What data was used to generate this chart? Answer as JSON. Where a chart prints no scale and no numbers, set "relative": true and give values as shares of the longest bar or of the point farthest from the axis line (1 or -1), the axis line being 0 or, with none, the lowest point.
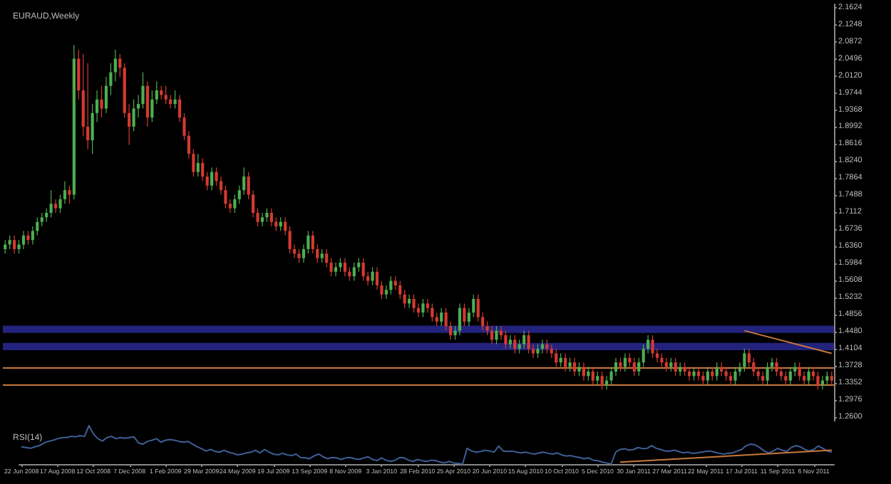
{
  "chart_data": [
    {
      "type": "candlestick",
      "title": "EURAUD,Weekly",
      "categories": [
        null,
        null,
        null,
        null,
        null,
        null,
        null,
        null,
        null,
        null,
        null,
        null,
        null,
        null,
        null,
        null,
        null,
        null,
        null,
        null,
        null,
        null,
        null,
        null,
        null,
        null,
        null,
        null,
        null,
        null,
        null,
        null,
        null,
        null,
        null,
        null,
        null,
        null,
        null,
        null,
        null,
        null,
        null,
        null,
        null,
        null,
        null,
        null,
        null,
        null,
        null,
        null,
        null,
        null,
        null,
        null,
        null,
        null,
        null,
        null,
        null,
        null,
        null,
        null,
        null,
        null,
        null,
        null,
        null,
        null,
        null,
        null,
        null,
        null,
        null,
        null,
        null,
        null,
        null,
        null,
        null,
        null,
        null,
        null,
        null,
        null,
        null,
        null,
        null,
        null,
        null,
        null,
        null,
        null,
        null,
        null,
        null,
        null,
        null,
        null,
        null,
        null,
        null,
        null,
        null,
        null,
        null,
        null,
        null,
        null,
        null,
        null,
        null,
        null,
        null,
        null,
        null,
        null,
        null,
        null,
        null,
        null,
        null,
        null,
        null,
        null,
        null,
        null,
        null,
        null,
        null,
        null,
        null,
        null,
        null,
        null,
        null,
        null,
        null,
        null,
        null,
        null,
        null,
        null,
        null,
        null,
        null,
        null,
        null,
        null,
        null,
        null,
        null,
        null,
        null,
        null,
        null,
        null,
        null,
        null,
        null,
        null,
        null,
        null,
        null,
        null,
        null,
        null,
        null,
        null,
        null,
        null,
        null,
        null,
        null,
        null,
        null,
        null,
        null,
        null,
        null
      ],
      "ohlc": [
        [
          1.63,
          1.65,
          1.62,
          1.64
        ],
        [
          1.64,
          1.66,
          1.63,
          1.65
        ],
        [
          1.65,
          1.66,
          1.62,
          1.63
        ],
        [
          1.63,
          1.65,
          1.62,
          1.64
        ],
        [
          1.64,
          1.67,
          1.63,
          1.66
        ],
        [
          1.66,
          1.67,
          1.64,
          1.65
        ],
        [
          1.65,
          1.68,
          1.64,
          1.67
        ],
        [
          1.67,
          1.7,
          1.66,
          1.69
        ],
        [
          1.69,
          1.71,
          1.68,
          1.7
        ],
        [
          1.7,
          1.72,
          1.69,
          1.71
        ],
        [
          1.71,
          1.76,
          1.7,
          1.73
        ],
        [
          1.73,
          1.74,
          1.71,
          1.72
        ],
        [
          1.72,
          1.75,
          1.71,
          1.74
        ],
        [
          1.74,
          1.78,
          1.73,
          1.76
        ],
        [
          1.76,
          1.77,
          1.73,
          1.75
        ],
        [
          1.75,
          2.08,
          1.74,
          2.05
        ],
        [
          2.05,
          2.07,
          1.96,
          1.98
        ],
        [
          1.98,
          2.06,
          1.88,
          1.9
        ],
        [
          1.9,
          2.04,
          1.85,
          1.87
        ],
        [
          1.87,
          1.95,
          1.84,
          1.93
        ],
        [
          1.93,
          1.98,
          1.91,
          1.96
        ],
        [
          1.96,
          1.99,
          1.92,
          1.94
        ],
        [
          1.94,
          2.01,
          1.93,
          1.99
        ],
        [
          1.99,
          2.04,
          1.97,
          2.02
        ],
        [
          2.02,
          2.07,
          2.0,
          2.05
        ],
        [
          2.05,
          2.06,
          2.01,
          2.03
        ],
        [
          2.03,
          2.04,
          1.92,
          1.93
        ],
        [
          1.93,
          1.95,
          1.86,
          1.9
        ],
        [
          1.9,
          1.96,
          1.89,
          1.94
        ],
        [
          1.94,
          1.97,
          1.92,
          1.95
        ],
        [
          1.95,
          2.02,
          1.94,
          1.99
        ],
        [
          1.99,
          2.0,
          1.9,
          1.92
        ],
        [
          1.92,
          1.98,
          1.91,
          1.96
        ],
        [
          1.96,
          2.0,
          1.95,
          1.98
        ],
        [
          1.98,
          1.99,
          1.96,
          1.97
        ],
        [
          1.97,
          1.99,
          1.95,
          1.96
        ],
        [
          1.96,
          1.97,
          1.94,
          1.95
        ],
        [
          1.95,
          1.98,
          1.94,
          1.96
        ],
        [
          1.96,
          1.97,
          1.91,
          1.92
        ],
        [
          1.92,
          1.93,
          1.87,
          1.88
        ],
        [
          1.88,
          1.89,
          1.83,
          1.84
        ],
        [
          1.84,
          1.85,
          1.79,
          1.8
        ],
        [
          1.8,
          1.84,
          1.79,
          1.82
        ],
        [
          1.82,
          1.83,
          1.78,
          1.79
        ],
        [
          1.79,
          1.8,
          1.76,
          1.77
        ],
        [
          1.77,
          1.81,
          1.76,
          1.8
        ],
        [
          1.8,
          1.81,
          1.77,
          1.78
        ],
        [
          1.78,
          1.79,
          1.75,
          1.76
        ],
        [
          1.76,
          1.77,
          1.72,
          1.73
        ],
        [
          1.73,
          1.74,
          1.71,
          1.72
        ],
        [
          1.72,
          1.75,
          1.71,
          1.74
        ],
        [
          1.74,
          1.77,
          1.73,
          1.76
        ],
        [
          1.76,
          1.81,
          1.75,
          1.79
        ],
        [
          1.79,
          1.8,
          1.74,
          1.75
        ],
        [
          1.75,
          1.76,
          1.7,
          1.71
        ],
        [
          1.71,
          1.72,
          1.68,
          1.69
        ],
        [
          1.69,
          1.71,
          1.68,
          1.7
        ],
        [
          1.7,
          1.72,
          1.69,
          1.71
        ],
        [
          1.71,
          1.72,
          1.68,
          1.69
        ],
        [
          1.69,
          1.7,
          1.67,
          1.68
        ],
        [
          1.68,
          1.7,
          1.67,
          1.69
        ],
        [
          1.69,
          1.7,
          1.66,
          1.67
        ],
        [
          1.67,
          1.68,
          1.62,
          1.63
        ],
        [
          1.63,
          1.64,
          1.61,
          1.62
        ],
        [
          1.62,
          1.63,
          1.6,
          1.61
        ],
        [
          1.61,
          1.64,
          1.6,
          1.63
        ],
        [
          1.63,
          1.67,
          1.62,
          1.66
        ],
        [
          1.66,
          1.67,
          1.62,
          1.63
        ],
        [
          1.63,
          1.64,
          1.6,
          1.61
        ],
        [
          1.61,
          1.63,
          1.6,
          1.62
        ],
        [
          1.62,
          1.63,
          1.59,
          1.6
        ],
        [
          1.6,
          1.61,
          1.57,
          1.58
        ],
        [
          1.58,
          1.6,
          1.57,
          1.59
        ],
        [
          1.59,
          1.61,
          1.58,
          1.6
        ],
        [
          1.6,
          1.61,
          1.57,
          1.58
        ],
        [
          1.58,
          1.59,
          1.56,
          1.57
        ],
        [
          1.57,
          1.6,
          1.56,
          1.59
        ],
        [
          1.59,
          1.61,
          1.58,
          1.6
        ],
        [
          1.6,
          1.61,
          1.56,
          1.57
        ],
        [
          1.57,
          1.58,
          1.55,
          1.56
        ],
        [
          1.56,
          1.59,
          1.55,
          1.58
        ],
        [
          1.58,
          1.59,
          1.54,
          1.55
        ],
        [
          1.55,
          1.56,
          1.52,
          1.53
        ],
        [
          1.53,
          1.55,
          1.52,
          1.54
        ],
        [
          1.54,
          1.57,
          1.53,
          1.56
        ],
        [
          1.56,
          1.57,
          1.54,
          1.55
        ],
        [
          1.55,
          1.56,
          1.52,
          1.53
        ],
        [
          1.53,
          1.54,
          1.5,
          1.51
        ],
        [
          1.51,
          1.53,
          1.5,
          1.52
        ],
        [
          1.52,
          1.53,
          1.49,
          1.5
        ],
        [
          1.5,
          1.51,
          1.48,
          1.49
        ],
        [
          1.49,
          1.52,
          1.48,
          1.51
        ],
        [
          1.51,
          1.52,
          1.49,
          1.5
        ],
        [
          1.5,
          1.51,
          1.47,
          1.48
        ],
        [
          1.48,
          1.49,
          1.46,
          1.47
        ],
        [
          1.47,
          1.5,
          1.46,
          1.49
        ],
        [
          1.49,
          1.5,
          1.45,
          1.46
        ],
        [
          1.46,
          1.47,
          1.43,
          1.44
        ],
        [
          1.44,
          1.46,
          1.43,
          1.45
        ],
        [
          1.45,
          1.51,
          1.44,
          1.5
        ],
        [
          1.5,
          1.51,
          1.46,
          1.47
        ],
        [
          1.47,
          1.5,
          1.46,
          1.49
        ],
        [
          1.49,
          1.53,
          1.48,
          1.52
        ],
        [
          1.52,
          1.53,
          1.47,
          1.48
        ],
        [
          1.48,
          1.49,
          1.45,
          1.46
        ],
        [
          1.46,
          1.47,
          1.44,
          1.45
        ],
        [
          1.45,
          1.46,
          1.42,
          1.43
        ],
        [
          1.43,
          1.46,
          1.42,
          1.45
        ],
        [
          1.45,
          1.46,
          1.43,
          1.44
        ],
        [
          1.44,
          1.45,
          1.41,
          1.42
        ],
        [
          1.42,
          1.44,
          1.41,
          1.43
        ],
        [
          1.43,
          1.44,
          1.4,
          1.41
        ],
        [
          1.41,
          1.43,
          1.4,
          1.42
        ],
        [
          1.42,
          1.45,
          1.41,
          1.44
        ],
        [
          1.44,
          1.45,
          1.4,
          1.41
        ],
        [
          1.41,
          1.42,
          1.39,
          1.4
        ],
        [
          1.4,
          1.42,
          1.39,
          1.41
        ],
        [
          1.41,
          1.43,
          1.4,
          1.42
        ],
        [
          1.42,
          1.43,
          1.4,
          1.41
        ],
        [
          1.41,
          1.42,
          1.39,
          1.4
        ],
        [
          1.4,
          1.41,
          1.37,
          1.38
        ],
        [
          1.38,
          1.4,
          1.37,
          1.39
        ],
        [
          1.39,
          1.4,
          1.36,
          1.37
        ],
        [
          1.37,
          1.39,
          1.36,
          1.38
        ],
        [
          1.38,
          1.39,
          1.35,
          1.36
        ],
        [
          1.36,
          1.38,
          1.35,
          1.37
        ],
        [
          1.37,
          1.38,
          1.34,
          1.35
        ],
        [
          1.35,
          1.37,
          1.34,
          1.36
        ],
        [
          1.36,
          1.37,
          1.33,
          1.34
        ],
        [
          1.34,
          1.36,
          1.33,
          1.35
        ],
        [
          1.35,
          1.36,
          1.32,
          1.33
        ],
        [
          1.33,
          1.35,
          1.32,
          1.34
        ],
        [
          1.34,
          1.37,
          1.33,
          1.36
        ],
        [
          1.36,
          1.39,
          1.35,
          1.38
        ],
        [
          1.38,
          1.39,
          1.36,
          1.37
        ],
        [
          1.37,
          1.4,
          1.36,
          1.39
        ],
        [
          1.39,
          1.4,
          1.37,
          1.38
        ],
        [
          1.38,
          1.39,
          1.35,
          1.36
        ],
        [
          1.36,
          1.39,
          1.35,
          1.38
        ],
        [
          1.38,
          1.42,
          1.37,
          1.41
        ],
        [
          1.41,
          1.44,
          1.4,
          1.43
        ],
        [
          1.43,
          1.44,
          1.39,
          1.4
        ],
        [
          1.4,
          1.41,
          1.38,
          1.39
        ],
        [
          1.39,
          1.4,
          1.37,
          1.38
        ],
        [
          1.38,
          1.39,
          1.36,
          1.37
        ],
        [
          1.37,
          1.39,
          1.36,
          1.38
        ],
        [
          1.38,
          1.39,
          1.35,
          1.36
        ],
        [
          1.36,
          1.38,
          1.35,
          1.37
        ],
        [
          1.37,
          1.38,
          1.35,
          1.36
        ],
        [
          1.36,
          1.37,
          1.34,
          1.35
        ],
        [
          1.35,
          1.37,
          1.34,
          1.36
        ],
        [
          1.36,
          1.37,
          1.34,
          1.35
        ],
        [
          1.35,
          1.36,
          1.33,
          1.34
        ],
        [
          1.34,
          1.37,
          1.33,
          1.36
        ],
        [
          1.36,
          1.37,
          1.34,
          1.35
        ],
        [
          1.35,
          1.38,
          1.34,
          1.37
        ],
        [
          1.37,
          1.38,
          1.35,
          1.36
        ],
        [
          1.36,
          1.37,
          1.34,
          1.35
        ],
        [
          1.35,
          1.36,
          1.33,
          1.34
        ],
        [
          1.34,
          1.37,
          1.33,
          1.36
        ],
        [
          1.36,
          1.38,
          1.35,
          1.37
        ],
        [
          1.37,
          1.41,
          1.36,
          1.4
        ],
        [
          1.4,
          1.41,
          1.37,
          1.38
        ],
        [
          1.38,
          1.39,
          1.35,
          1.36
        ],
        [
          1.36,
          1.37,
          1.34,
          1.35
        ],
        [
          1.35,
          1.36,
          1.33,
          1.34
        ],
        [
          1.34,
          1.38,
          1.33,
          1.37
        ],
        [
          1.37,
          1.39,
          1.36,
          1.38
        ],
        [
          1.38,
          1.39,
          1.35,
          1.36
        ],
        [
          1.36,
          1.37,
          1.34,
          1.35
        ],
        [
          1.35,
          1.36,
          1.33,
          1.34
        ],
        [
          1.34,
          1.37,
          1.33,
          1.36
        ],
        [
          1.36,
          1.38,
          1.35,
          1.37
        ],
        [
          1.37,
          1.38,
          1.34,
          1.35
        ],
        [
          1.35,
          1.36,
          1.33,
          1.34
        ],
        [
          1.34,
          1.37,
          1.33,
          1.36
        ],
        [
          1.36,
          1.37,
          1.34,
          1.35
        ],
        [
          1.35,
          1.36,
          1.32,
          1.33
        ],
        [
          1.33,
          1.35,
          1.32,
          1.34
        ],
        [
          1.34,
          1.36,
          1.33,
          1.35
        ],
        [
          1.35,
          1.36,
          1.33,
          1.34
        ]
      ],
      "colors": [
        "#4caf50",
        "#4caf50",
        "#d43a30",
        "#4caf50",
        "#4caf50",
        "#d43a30",
        "#4caf50",
        "#4caf50",
        "#4caf50",
        "#4caf50",
        "#4caf50",
        "#d43a30",
        "#4caf50",
        "#4caf50",
        "#d43a30",
        "#4caf50",
        "#d43a30",
        "#d43a30",
        "#d43a30",
        "#4caf50",
        "#4caf50",
        "#d43a30",
        "#4caf50",
        "#4caf50",
        "#4caf50",
        "#d43a30",
        "#d43a30",
        "#d43a30",
        "#4caf50",
        "#4caf50",
        "#4caf50",
        "#d43a30",
        "#4caf50",
        "#4caf50",
        "#d43a30",
        "#d43a30",
        "#d43a30",
        "#4caf50",
        "#d43a30",
        "#d43a30",
        "#d43a30",
        "#d43a30",
        "#4caf50",
        "#d43a30",
        "#d43a30",
        "#4caf50",
        "#d43a30",
        "#d43a30",
        "#d43a30",
        "#d43a30",
        "#4caf50",
        "#4caf50",
        "#4caf50",
        "#d43a30",
        "#d43a30",
        "#d43a30",
        "#4caf50",
        "#4caf50",
        "#d43a30",
        "#d43a30",
        "#4caf50",
        "#d43a30",
        "#d43a30",
        "#d43a30",
        "#d43a30",
        "#4caf50",
        "#4caf50",
        "#d43a30",
        "#d43a30",
        "#4caf50",
        "#d43a30",
        "#d43a30",
        "#4caf50",
        "#4caf50",
        "#d43a30",
        "#d43a30",
        "#4caf50",
        "#4caf50",
        "#d43a30",
        "#d43a30",
        "#4caf50",
        "#d43a30",
        "#d43a30",
        "#4caf50",
        "#4caf50",
        "#d43a30",
        "#d43a30",
        "#d43a30",
        "#4caf50",
        "#d43a30",
        "#d43a30",
        "#4caf50",
        "#d43a30",
        "#d43a30",
        "#d43a30",
        "#4caf50",
        "#d43a30",
        "#d43a30",
        "#4caf50",
        "#4caf50",
        "#d43a30",
        "#4caf50",
        "#4caf50",
        "#d43a30",
        "#d43a30",
        "#d43a30",
        "#d43a30",
        "#4caf50",
        "#d43a30",
        "#d43a30",
        "#4caf50",
        "#d43a30",
        "#4caf50",
        "#4caf50",
        "#d43a30",
        "#d43a30",
        "#4caf50",
        "#4caf50",
        "#d43a30",
        "#d43a30",
        "#d43a30",
        "#4caf50",
        "#d43a30",
        "#4caf50",
        "#d43a30",
        "#4caf50",
        "#d43a30",
        "#4caf50",
        "#d43a30",
        "#4caf50",
        "#d43a30",
        "#4caf50",
        "#4caf50",
        "#4caf50",
        "#d43a30",
        "#4caf50",
        "#d43a30",
        "#d43a30",
        "#4caf50",
        "#4caf50",
        "#4caf50",
        "#d43a30",
        "#d43a30",
        "#d43a30",
        "#d43a30",
        "#4caf50",
        "#d43a30",
        "#4caf50",
        "#d43a30",
        "#d43a30",
        "#4caf50",
        "#d43a30",
        "#d43a30",
        "#4caf50",
        "#d43a30",
        "#4caf50",
        "#d43a30",
        "#d43a30",
        "#d43a30",
        "#4caf50",
        "#4caf50",
        "#4caf50",
        "#d43a30",
        "#d43a30",
        "#d43a30",
        "#d43a30",
        "#4caf50",
        "#4caf50",
        "#d43a30",
        "#d43a30",
        "#d43a30",
        "#4caf50",
        "#4caf50",
        "#d43a30",
        "#d43a30",
        "#4caf50",
        "#d43a30",
        "#d43a30",
        "#4caf50",
        "#4caf50",
        "#d43a30"
      ],
      "series": [
        {
          "type": "line",
          "color": "#c8783c",
          "values": [
            null,
            null,
            null,
            null,
            null,
            null,
            null,
            null,
            null,
            null,
            null,
            null,
            null,
            null,
            null,
            null,
            null,
            null,
            null,
            null,
            null,
            null,
            null,
            null,
            null,
            null,
            null,
            null,
            null,
            null,
            null,
            null,
            null,
            null,
            null,
            null,
            null,
            null,
            null,
            null,
            null,
            null,
            null,
            null,
            null,
            null,
            null,
            null,
            null,
            null,
            null,
            null,
            null,
            null,
            null,
            null,
            null,
            null,
            null,
            null,
            null,
            null,
            null,
            null,
            null,
            null,
            null,
            null,
            null,
            null,
            null,
            null,
            null,
            null,
            null,
            null,
            null,
            null,
            null,
            null,
            null,
            null,
            null,
            null,
            null,
            null,
            null,
            null,
            null,
            null,
            null,
            null,
            null,
            null,
            null,
            null,
            null,
            null,
            null,
            null,
            null,
            null,
            null,
            null,
            null,
            null,
            null,
            null,
            null,
            null,
            null,
            null,
            null,
            null,
            null,
            null,
            null,
            null,
            null,
            null,
            null,
            null,
            null,
            null,
            null,
            null,
            null,
            null,
            null,
            null,
            null,
            null,
            null,
            null,
            null,
            null,
            null,
            null,
            null,
            null,
            null,
            null,
            null,
            null,
            null,
            null,
            null,
            null,
            null,
            null,
            null,
            null,
            null,
            null,
            null,
            null,
            null,
            null,
            null,
            null,
            null,
            1.45,
            null,
            null,
            null,
            null,
            null,
            null,
            null,
            null,
            null,
            null,
            null,
            null,
            null,
            null,
            null,
            null,
            null,
            null,
            1.4
          ]
        }
      ],
      "ylim": [
        1.25,
        2.17
      ],
      "yticks": [
        {
          "value": 1.26,
          "label": "1.2600"
        },
        {
          "value": 1.2976,
          "label": "1.2976"
        },
        {
          "value": 1.3352,
          "label": "1.3352"
        },
        {
          "value": 1.3728,
          "label": "1.3728"
        },
        {
          "value": 1.4104,
          "label": "1.4104"
        },
        {
          "value": 1.448,
          "label": "1.4480"
        },
        {
          "value": 1.4856,
          "label": "1.4856"
        },
        {
          "value": 1.5232,
          "label": "1.5232"
        },
        {
          "value": 1.5608,
          "label": "1.5608"
        },
        {
          "value": 1.5984,
          "label": "1.5984"
        },
        {
          "value": 1.636,
          "label": "1.6360"
        },
        {
          "value": 1.6736,
          "label": "1.6736"
        },
        {
          "value": 1.7112,
          "label": "1.7112"
        },
        {
          "value": 1.7488,
          "label": "1.7488"
        },
        {
          "value": 1.7864,
          "label": "1.7864"
        },
        {
          "value": 1.824,
          "label": "1.8240"
        },
        {
          "value": 1.8616,
          "label": "1.8616"
        },
        {
          "value": 1.8992,
          "label": "1.8992"
        },
        {
          "value": 1.9368,
          "label": "1.9368"
        },
        {
          "value": 1.9744,
          "label": "1.9744"
        },
        {
          "value": 2.012,
          "label": "2.0120"
        },
        {
          "value": 2.0496,
          "label": "2.0496"
        },
        {
          "value": 2.0872,
          "label": "2.0872"
        },
        {
          "value": 2.1248,
          "label": "2.1248"
        },
        {
          "value": 2.1624,
          "label": "2.1624"
        }
      ],
      "bands": [
        {
          "axis": "y",
          "from": 1.445,
          "to": 1.461,
          "color": "#23237e"
        },
        {
          "axis": "y",
          "from": 1.407,
          "to": 1.423,
          "color": "#23237e"
        }
      ],
      "ref_lines": [
        {
          "axis": "y",
          "value": 1.33,
          "color": "#c8783c"
        },
        {
          "axis": "y",
          "value": 1.37,
          "color": "#c8783c"
        }
      ],
      "tick_labels": "y"
    },
    {
      "type": "line",
      "title": "RSI(14)",
      "relative": true,
      "categories": [
        "22 Jun 2008",
        null,
        null,
        null,
        null,
        null,
        null,
        null,
        "17 Aug 2008",
        null,
        null,
        null,
        null,
        null,
        null,
        null,
        "12 Oct 2008",
        null,
        null,
        null,
        null,
        null,
        null,
        null,
        "7 Dec 2008",
        null,
        null,
        null,
        null,
        null,
        null,
        null,
        "1 Feb 2009",
        null,
        null,
        null,
        null,
        null,
        null,
        null,
        "29 Mar 2009",
        null,
        null,
        null,
        null,
        null,
        null,
        null,
        "24 May 2009",
        null,
        null,
        null,
        null,
        null,
        null,
        null,
        "19 Jul 2009",
        null,
        null,
        null,
        null,
        null,
        null,
        null,
        "13 Sep 2009",
        null,
        null,
        null,
        null,
        null,
        null,
        null,
        "8 Nov 2009",
        null,
        null,
        null,
        null,
        null,
        null,
        null,
        "3 Jan 2010",
        null,
        null,
        null,
        null,
        null,
        null,
        null,
        "28 Feb 2010",
        null,
        null,
        null,
        null,
        null,
        null,
        null,
        "25 Apr 2010",
        null,
        null,
        null,
        null,
        null,
        null,
        null,
        "20 Jun 2010",
        null,
        null,
        null,
        null,
        null,
        null,
        null,
        "15 Aug 2010",
        null,
        null,
        null,
        null,
        null,
        null,
        null,
        "10 Oct 2010",
        null,
        null,
        null,
        null,
        null,
        null,
        null,
        "5 Dec 2010",
        null,
        null,
        null,
        null,
        null,
        null,
        null,
        "30 Jan 2011",
        null,
        null,
        null,
        null,
        null,
        null,
        null,
        "27 Mar 2011",
        null,
        null,
        null,
        null,
        null,
        null,
        null,
        "22 May 2011",
        null,
        null,
        null,
        null,
        null,
        null,
        null,
        "17 Jul 2011",
        null,
        null,
        null,
        null,
        null,
        null,
        null,
        "11 Sep 2011",
        null,
        null,
        null,
        null,
        null,
        null,
        null,
        "6 Nov 2011",
        null,
        null,
        null,
        null
      ],
      "series": [
        {
          "color": "#3e5f96",
          "values": [
            0.45,
            0.43,
            0.41,
            0.45,
            0.48,
            0.55,
            0.59,
            0.62,
            0.66,
            0.69,
            0.69,
            0.72,
            0.71,
            0.74,
            0.72,
            1,
            0.78,
            0.66,
            0.6,
            0.69,
            0.72,
            0.66,
            0.69,
            0.67,
            0.69,
            0.71,
            0.55,
            0.52,
            0.59,
            0.62,
            0.66,
            0.57,
            0.62,
            0.64,
            0.62,
            0.59,
            0.57,
            0.59,
            0.52,
            0.45,
            0.4,
            0.34,
            0.38,
            0.33,
            0.31,
            0.36,
            0.31,
            0.28,
            0.24,
            0.26,
            0.29,
            0.31,
            0.36,
            0.29,
            0.38,
            0.31,
            0.26,
            0.24,
            0.28,
            0.24,
            0.22,
            0.26,
            0.17,
            0.16,
            0.14,
            0.21,
            0.26,
            0.19,
            0.14,
            0.17,
            0.16,
            0.12,
            0.16,
            0.17,
            0.14,
            0.12,
            0.16,
            0.19,
            0.12,
            0.09,
            0.16,
            0.1,
            0.07,
            0.1,
            0.17,
            0.16,
            0.1,
            0.07,
            0.12,
            0.09,
            0.07,
            0.1,
            0.09,
            0.05,
            0.03,
            0.07,
            0.03,
            0.02,
            0,
            0.41,
            0.34,
            0.31,
            0.33,
            0.36,
            0.34,
            0.31,
            0.47,
            0.34,
            0.33,
            0.34,
            0.31,
            0.29,
            0.31,
            0.28,
            0.26,
            0.29,
            0.31,
            0.28,
            0.26,
            0.29,
            0.24,
            0.21,
            0.22,
            0.19,
            0.17,
            0.14,
            0.16,
            0.1,
            0.09,
            0.05,
            0.03,
            0,
            0.31,
            0.38,
            0.4,
            0.36,
            0.38,
            0.43,
            0.4,
            0.41,
            0.48,
            0.41,
            0.38,
            0.34,
            0.34,
            0.36,
            0.33,
            0.29,
            0.31,
            0.28,
            0.29,
            0.31,
            0.33,
            0.34,
            0.31,
            0.28,
            0.26,
            0.28,
            0.29,
            0.34,
            0.38,
            0.48,
            0.52,
            0.5,
            0.43,
            0.34,
            0.29,
            0.34,
            0.41,
            0.36,
            0.33,
            0.43,
            0.48,
            0.45,
            0.38,
            0.34,
            0.38,
            0.47,
            0.41,
            0.34,
            0.31
          ]
        },
        {
          "color": "#c8783c",
          "values": [
            null,
            null,
            null,
            null,
            null,
            null,
            null,
            null,
            null,
            null,
            null,
            null,
            null,
            null,
            null,
            null,
            null,
            null,
            null,
            null,
            null,
            null,
            null,
            null,
            null,
            null,
            null,
            null,
            null,
            null,
            null,
            null,
            null,
            null,
            null,
            null,
            null,
            null,
            null,
            null,
            null,
            null,
            null,
            null,
            null,
            null,
            null,
            null,
            null,
            null,
            null,
            null,
            null,
            null,
            null,
            null,
            null,
            null,
            null,
            null,
            null,
            null,
            null,
            null,
            null,
            null,
            null,
            null,
            null,
            null,
            null,
            null,
            null,
            null,
            null,
            null,
            null,
            null,
            null,
            null,
            null,
            null,
            null,
            null,
            null,
            null,
            null,
            null,
            null,
            null,
            null,
            null,
            null,
            null,
            null,
            null,
            null,
            null,
            null,
            null,
            null,
            null,
            null,
            null,
            null,
            null,
            null,
            null,
            null,
            null,
            null,
            null,
            null,
            null,
            null,
            null,
            null,
            null,
            null,
            null,
            null,
            null,
            null,
            null,
            null,
            null,
            null,
            null,
            null,
            null,
            null,
            null,
            null,
            0.05,
            null,
            null,
            null,
            null,
            null,
            null,
            null,
            null,
            null,
            null,
            null,
            null,
            null,
            null,
            null,
            null,
            null,
            null,
            null,
            null,
            null,
            null,
            null,
            null,
            null,
            null,
            null,
            null,
            null,
            null,
            null,
            null,
            null,
            null,
            null,
            null,
            null,
            null,
            null,
            null,
            null,
            null,
            null,
            null,
            null,
            null,
            0.36
          ]
        }
      ],
      "tick_labels": "x"
    }
  ]
}
